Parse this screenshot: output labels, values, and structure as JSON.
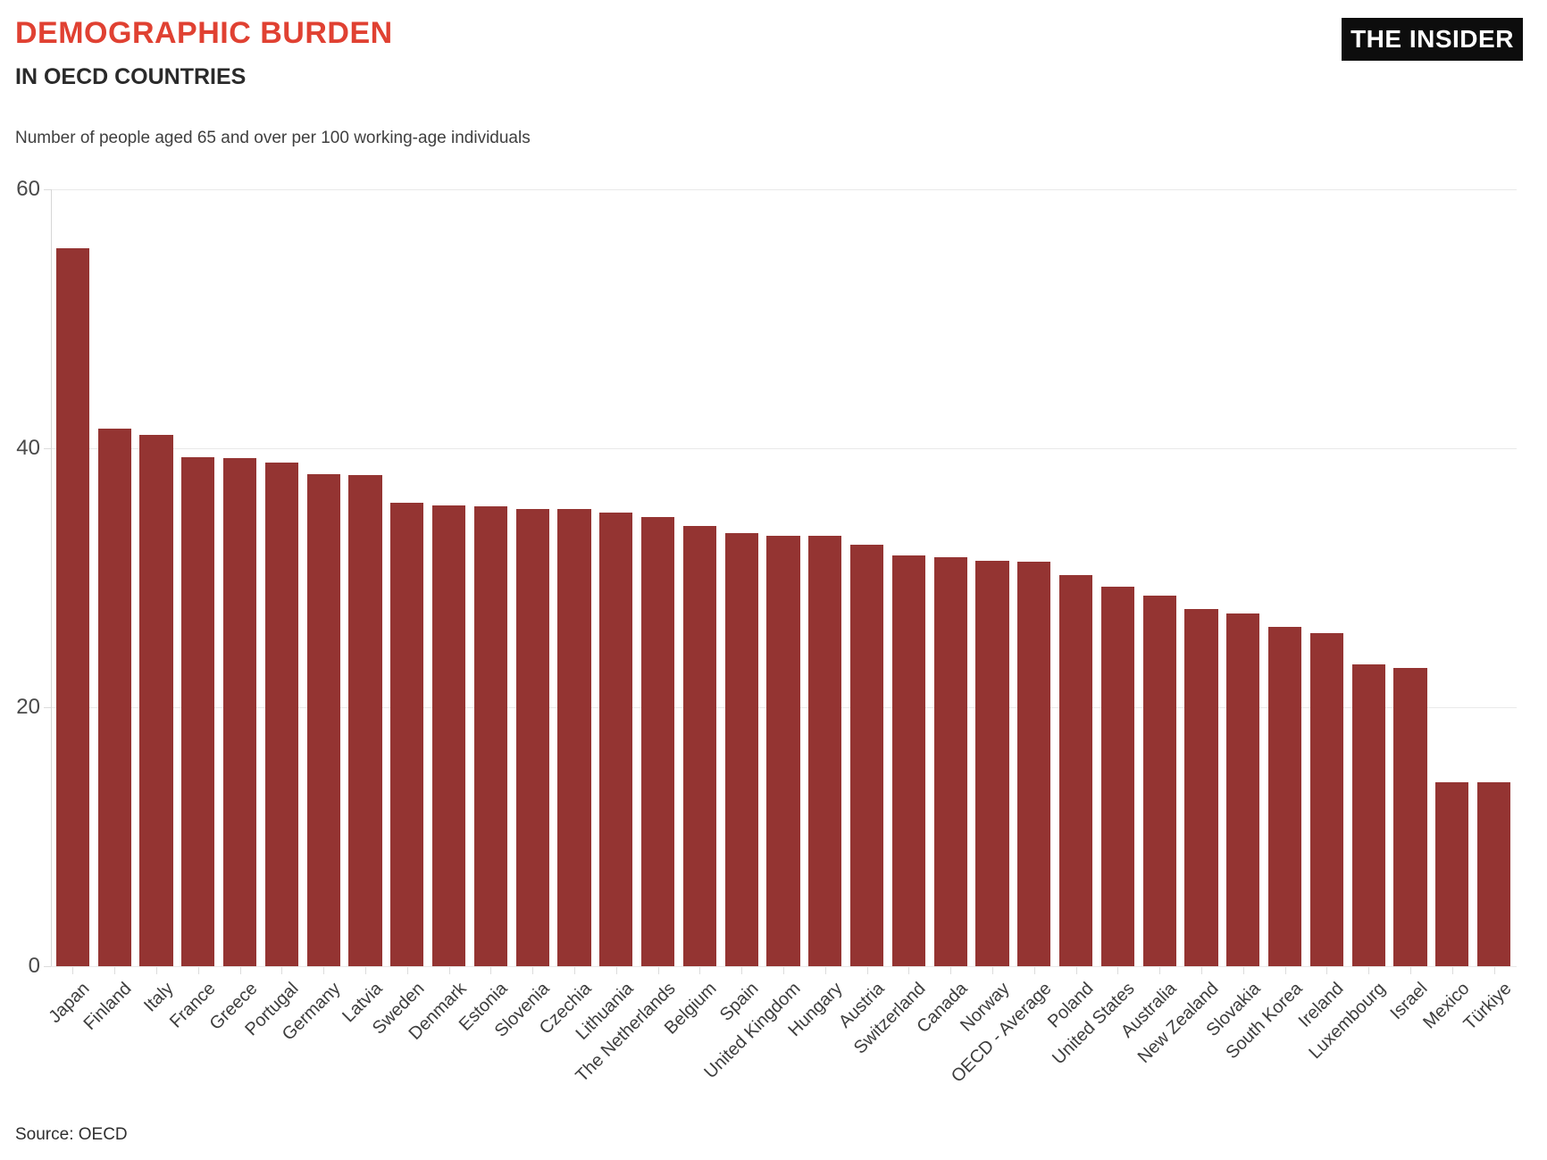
{
  "header": {
    "title": "DEMOGRAPHIC BURDEN",
    "subtitle": "IN OECD COUNTRIES",
    "description": "Number of people aged 65 and over per 100 working-age individuals",
    "logo": "THE INSIDER"
  },
  "footer": {
    "source": "Source: OECD"
  },
  "colors": {
    "bar": "#943432",
    "title": "#e04132",
    "logo_bg": "#0d0d0d",
    "logo_text": "#ffffff",
    "grid": "#e9e9e9",
    "axis": "#d6d6d6",
    "tick": "#dcdcdc",
    "tick_label": "#4a4a4a"
  },
  "chart_data": {
    "type": "bar",
    "title": "DEMOGRAPHIC BURDEN IN OECD COUNTRIES",
    "subtitle": "Number of people aged 65 and over per 100 working-age individuals",
    "xlabel": "",
    "ylabel": "Number of people aged 65 and over per 100 working-age individuals",
    "ylim": [
      0,
      60
    ],
    "yticks": [
      0,
      20,
      40,
      60
    ],
    "grid": true,
    "legend": false,
    "bar_color": "#943432",
    "categories": [
      "Japan",
      "Finland",
      "Italy",
      "France",
      "Greece",
      "Portugal",
      "Germany",
      "Latvia",
      "Sweden",
      "Denmark",
      "Estonia",
      "Slovenia",
      "Czechia",
      "Lithuania",
      "The Netherlands",
      "Belgium",
      "Spain",
      "United Kingdom",
      "Hungary",
      "Austria",
      "Switzerland",
      "Canada",
      "Norway",
      "OECD - Average",
      "Poland",
      "United States",
      "Australia",
      "New Zealand",
      "Slovakia",
      "South Korea",
      "Ireland",
      "Luxembourg",
      "Israel",
      "Mexico",
      "Türkiye"
    ],
    "values": [
      55.4,
      41.5,
      41.0,
      39.3,
      39.2,
      38.9,
      38.0,
      37.9,
      35.8,
      35.6,
      35.5,
      35.3,
      35.3,
      35.0,
      34.7,
      34.0,
      33.4,
      33.2,
      33.2,
      32.5,
      31.7,
      31.6,
      31.3,
      31.2,
      30.2,
      29.3,
      28.6,
      27.6,
      27.2,
      26.2,
      25.7,
      23.3,
      23.0,
      14.2,
      14.2
    ],
    "source": "Source: OECD"
  }
}
